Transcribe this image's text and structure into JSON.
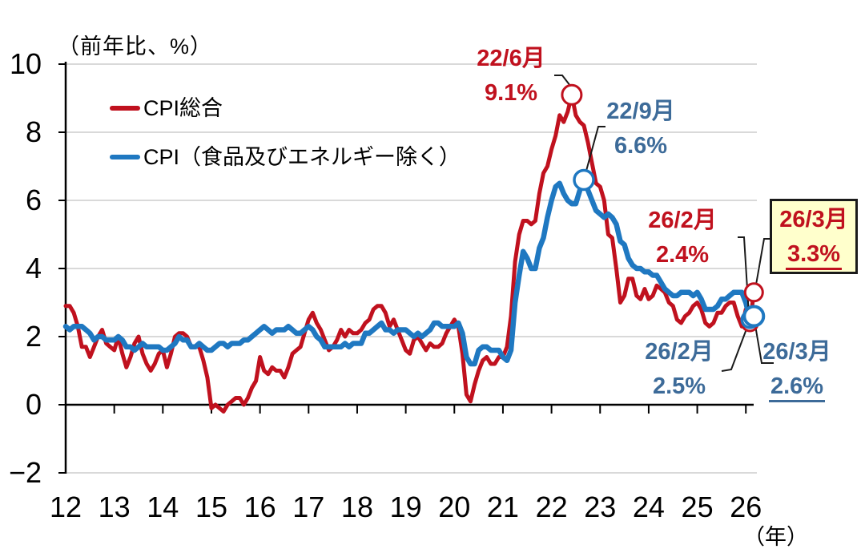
{
  "chart_data": {
    "type": "line",
    "unit_label": "（前年比、%）",
    "x_axis_suffix_label": "（年）",
    "x_start_month": "2012-01",
    "x_end_month": "2026-03",
    "frequency": "monthly",
    "x_tick_labels": [
      "12",
      "13",
      "14",
      "15",
      "16",
      "17",
      "18",
      "19",
      "20",
      "21",
      "22",
      "23",
      "24",
      "25",
      "26"
    ],
    "y_ticks": [
      10,
      8,
      6,
      4,
      2,
      0,
      -2
    ],
    "ylim": [
      -2,
      10
    ],
    "grid": "horizontal",
    "legend_position": "top-left-inside",
    "colors": {
      "headline_red": "#C0111E",
      "core_blue": "#1F78C1",
      "annotation_blue_text": "#3D6B99",
      "gridline": "#D9D9D9",
      "axis": "#000000",
      "callout_box_fill": "#FFFFCC",
      "callout_box_border": "#1A1A1A",
      "leader_line": "#1A1A1A"
    },
    "series": [
      {
        "name": "CPI総合",
        "color": "#C0111E",
        "text_color": "#C0111E",
        "values": [
          2.9,
          2.9,
          2.7,
          2.3,
          1.7,
          1.7,
          1.4,
          1.7,
          2.0,
          2.2,
          1.8,
          1.7,
          1.6,
          2.0,
          1.5,
          1.1,
          1.4,
          1.8,
          2.0,
          1.5,
          1.2,
          1.0,
          1.2,
          1.5,
          1.6,
          1.1,
          1.5,
          2.0,
          2.1,
          2.1,
          2.0,
          1.7,
          1.7,
          1.7,
          1.3,
          0.8,
          -0.1,
          0.0,
          -0.1,
          -0.2,
          0.0,
          0.1,
          0.2,
          0.2,
          0.0,
          0.2,
          0.5,
          0.7,
          1.4,
          1.0,
          0.9,
          1.1,
          1.0,
          1.0,
          0.8,
          1.1,
          1.5,
          1.6,
          1.7,
          2.1,
          2.5,
          2.7,
          2.4,
          2.2,
          1.9,
          1.6,
          1.7,
          1.9,
          2.2,
          2.0,
          2.2,
          2.1,
          2.1,
          2.2,
          2.4,
          2.5,
          2.8,
          2.9,
          2.9,
          2.7,
          2.3,
          2.5,
          2.2,
          1.9,
          1.6,
          1.5,
          1.9,
          2.0,
          1.8,
          1.6,
          1.8,
          1.7,
          1.7,
          1.8,
          2.1,
          2.3,
          2.5,
          2.3,
          1.5,
          0.3,
          0.1,
          0.6,
          1.0,
          1.3,
          1.4,
          1.2,
          1.2,
          1.4,
          1.4,
          1.7,
          2.6,
          4.2,
          5.0,
          5.4,
          5.4,
          5.3,
          5.4,
          6.2,
          6.8,
          7.0,
          7.5,
          7.9,
          8.5,
          8.3,
          8.6,
          9.1,
          8.5,
          8.3,
          8.2,
          7.7,
          7.1,
          6.5,
          6.4,
          6.0,
          5.0,
          4.9,
          4.0,
          3.0,
          3.2,
          3.7,
          3.7,
          3.2,
          3.1,
          3.4,
          3.1,
          3.2,
          3.5,
          3.4,
          3.3,
          3.0,
          2.9,
          2.5,
          2.4,
          2.6,
          2.7,
          2.9,
          3.0,
          2.8,
          2.4,
          2.3,
          2.4,
          2.7,
          2.7,
          2.9,
          3.0,
          3.0,
          2.6,
          2.3,
          2.8,
          2.4,
          3.3
        ]
      },
      {
        "name": "CPI（食品及びエネルギー除く）",
        "color": "#1F78C1",
        "text_color": "#3D6B99",
        "values": [
          2.3,
          2.2,
          2.3,
          2.3,
          2.3,
          2.2,
          2.1,
          1.9,
          2.0,
          2.0,
          1.9,
          1.9,
          1.9,
          2.0,
          1.9,
          1.7,
          1.7,
          1.6,
          1.7,
          1.8,
          1.7,
          1.7,
          1.7,
          1.7,
          1.6,
          1.6,
          1.7,
          1.8,
          2.0,
          1.9,
          1.9,
          1.7,
          1.7,
          1.8,
          1.7,
          1.6,
          1.6,
          1.7,
          1.8,
          1.8,
          1.7,
          1.8,
          1.8,
          1.8,
          1.9,
          1.9,
          2.0,
          2.1,
          2.2,
          2.3,
          2.2,
          2.1,
          2.2,
          2.2,
          2.2,
          2.3,
          2.2,
          2.1,
          2.1,
          2.2,
          2.3,
          2.2,
          2.0,
          1.9,
          1.7,
          1.7,
          1.7,
          1.7,
          1.7,
          1.8,
          1.7,
          1.8,
          1.8,
          1.8,
          2.1,
          2.1,
          2.2,
          2.3,
          2.4,
          2.2,
          2.2,
          2.1,
          2.2,
          2.2,
          2.2,
          2.1,
          2.0,
          2.1,
          2.0,
          2.1,
          2.2,
          2.4,
          2.4,
          2.3,
          2.3,
          2.3,
          2.3,
          2.4,
          2.1,
          1.4,
          1.2,
          1.2,
          1.6,
          1.7,
          1.7,
          1.6,
          1.6,
          1.6,
          1.4,
          1.3,
          1.6,
          3.0,
          3.8,
          4.5,
          4.3,
          4.0,
          4.0,
          4.6,
          4.9,
          5.5,
          6.0,
          6.4,
          6.5,
          6.2,
          6.0,
          5.9,
          5.9,
          6.3,
          6.6,
          6.3,
          6.0,
          5.7,
          5.6,
          5.5,
          5.6,
          5.5,
          5.3,
          4.8,
          4.7,
          4.3,
          4.1,
          4.0,
          4.0,
          3.9,
          3.9,
          3.8,
          3.8,
          3.6,
          3.4,
          3.3,
          3.2,
          3.2,
          3.3,
          3.3,
          3.3,
          3.2,
          3.3,
          3.1,
          2.8,
          2.8,
          2.8,
          2.9,
          3.1,
          3.1,
          3.2,
          3.3,
          3.3,
          3.3,
          3.0,
          2.5,
          2.6
        ]
      }
    ],
    "callouts": [
      {
        "id": "peak_headline",
        "series": "CPI総合",
        "series_index": 0,
        "month": "2022-06",
        "month_index": 125,
        "value": 9.1,
        "label_line1": "22/6月",
        "label_line2": "9.1%",
        "text_color": "#C0111E",
        "boxed": false,
        "underlined_value": false
      },
      {
        "id": "peak_core",
        "series": "CPI（食品及びエネルギー除く）",
        "series_index": 1,
        "month": "2022-09",
        "month_index": 128,
        "value": 6.6,
        "label_line1": "22/9月",
        "label_line2": "6.6%",
        "text_color": "#3D6B99",
        "boxed": false,
        "underlined_value": false
      },
      {
        "id": "feb26_headline",
        "series": "CPI総合",
        "series_index": 0,
        "month": "2026-02",
        "month_index": 169,
        "value": 2.4,
        "label_line1": "26/2月",
        "label_line2": "2.4%",
        "text_color": "#C0111E",
        "boxed": false,
        "underlined_value": false
      },
      {
        "id": "feb26_core",
        "series": "CPI（食品及びエネルギー除く）",
        "series_index": 1,
        "month": "2026-02",
        "month_index": 169,
        "value": 2.5,
        "label_line1": "26/2月",
        "label_line2": "2.5%",
        "text_color": "#3D6B99",
        "boxed": false,
        "underlined_value": false
      },
      {
        "id": "mar26_headline",
        "series": "CPI総合",
        "series_index": 0,
        "month": "2026-03",
        "month_index": 170,
        "value": 3.3,
        "label_line1": "26/3月",
        "label_line2": "3.3%",
        "text_color": "#C0111E",
        "boxed": true,
        "underlined_value": true
      },
      {
        "id": "mar26_core",
        "series": "CPI（食品及びエネルギー除く）",
        "series_index": 1,
        "month": "2026-03",
        "month_index": 170,
        "value": 2.6,
        "label_line1": "26/3月",
        "label_line2": "2.6%",
        "text_color": "#3D6B99",
        "boxed": false,
        "underlined_value": true
      }
    ]
  }
}
